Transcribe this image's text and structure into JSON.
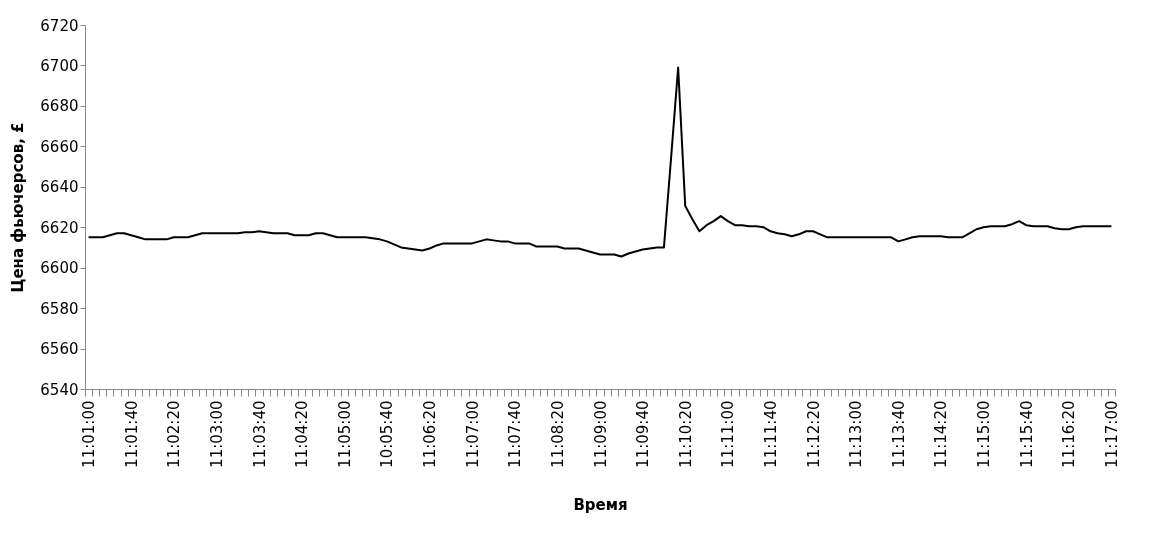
{
  "chart_data": {
    "type": "line",
    "xlabel": "Время",
    "ylabel": "Цена фьючерсов, £",
    "categories": [
      "11:01:00",
      null,
      null,
      null,
      null,
      null,
      "11:01:40",
      null,
      null,
      null,
      null,
      null,
      "11:02:20",
      null,
      null,
      null,
      null,
      null,
      "11:03:00",
      null,
      null,
      null,
      null,
      null,
      "11:03:40",
      null,
      null,
      null,
      null,
      null,
      "11:04:20",
      null,
      null,
      null,
      null,
      null,
      "11:05:00",
      null,
      null,
      null,
      null,
      null,
      "10:05:40",
      null,
      null,
      null,
      null,
      null,
      "11:06:20",
      null,
      null,
      null,
      null,
      null,
      "11:07:00",
      null,
      null,
      null,
      null,
      null,
      "11:07:40",
      null,
      null,
      null,
      null,
      null,
      "11:08:20",
      null,
      null,
      null,
      null,
      null,
      "11:09:00",
      null,
      null,
      null,
      null,
      null,
      "11:09:40",
      null,
      null,
      null,
      null,
      null,
      "11:10:20",
      null,
      null,
      null,
      null,
      null,
      "11:11:00",
      null,
      null,
      null,
      null,
      null,
      "11:11:40",
      null,
      null,
      null,
      null,
      null,
      "11:12:20",
      null,
      null,
      null,
      null,
      null,
      "11:13:00",
      null,
      null,
      null,
      null,
      null,
      "11:13:40",
      null,
      null,
      null,
      null,
      null,
      "11:14:20",
      null,
      null,
      null,
      null,
      null,
      "11:15:00",
      null,
      null,
      null,
      null,
      null,
      "11:15:40",
      null,
      null,
      null,
      null,
      null,
      "11:16:20",
      null,
      null,
      null,
      null,
      null,
      "11:17:00"
    ],
    "series": [
      {
        "color": "#000000",
        "values": [
          6615,
          6615,
          6615,
          6616,
          6617,
          6617,
          6616,
          6615,
          6614,
          6614,
          6614,
          6614,
          6615,
          6615,
          6615,
          6616,
          6617,
          6617,
          6617,
          6617,
          6617,
          6617,
          6617.5,
          6617.5,
          6618,
          6617.5,
          6617,
          6617,
          6617,
          6616,
          6616,
          6616,
          6617,
          6617,
          6616,
          6615,
          6615,
          6615,
          6615,
          6615,
          6614.5,
          6614,
          6613,
          6611.5,
          6610,
          6609.5,
          6609,
          6608.5,
          6609.5,
          6611,
          6612,
          6612,
          6612,
          6612,
          6612,
          6613,
          6614,
          6613.5,
          6613,
          6613,
          6612,
          6612,
          6612,
          6610.5,
          6610.5,
          6610.5,
          6610.5,
          6609.5,
          6609.5,
          6609.5,
          6608.5,
          6607.5,
          6606.5,
          6606.5,
          6606.5,
          6605.5,
          6607,
          6608,
          6609,
          6609.5,
          6610,
          6610,
          6654,
          6699,
          6630.5,
          6624,
          6618,
          6621,
          6623,
          6625.5,
          6623,
          6621,
          6621,
          6620.5,
          6620.5,
          6620,
          6618,
          6617,
          6616.5,
          6615.5,
          6616.5,
          6618,
          6618,
          6616.5,
          6615,
          6615,
          6615,
          6615,
          6615,
          6615,
          6615,
          6615,
          6615,
          6615,
          6613,
          6614,
          6615,
          6615.5,
          6615.5,
          6615.5,
          6615.5,
          6615,
          6615,
          6615,
          6617,
          6619,
          6620,
          6620.5,
          6620.5,
          6620.5,
          6621.5,
          6623,
          6621,
          6620.5,
          6620.5,
          6620.5,
          6619.5,
          6619,
          6619,
          6620,
          6620.5,
          6620.5,
          6620.5,
          6620.5,
          6620.5
        ]
      }
    ],
    "ylim": [
      6540,
      6720
    ],
    "yticks": [
      6540,
      6560,
      6580,
      6600,
      6620,
      6640,
      6660,
      6680,
      6700,
      6720
    ],
    "grid": false
  }
}
